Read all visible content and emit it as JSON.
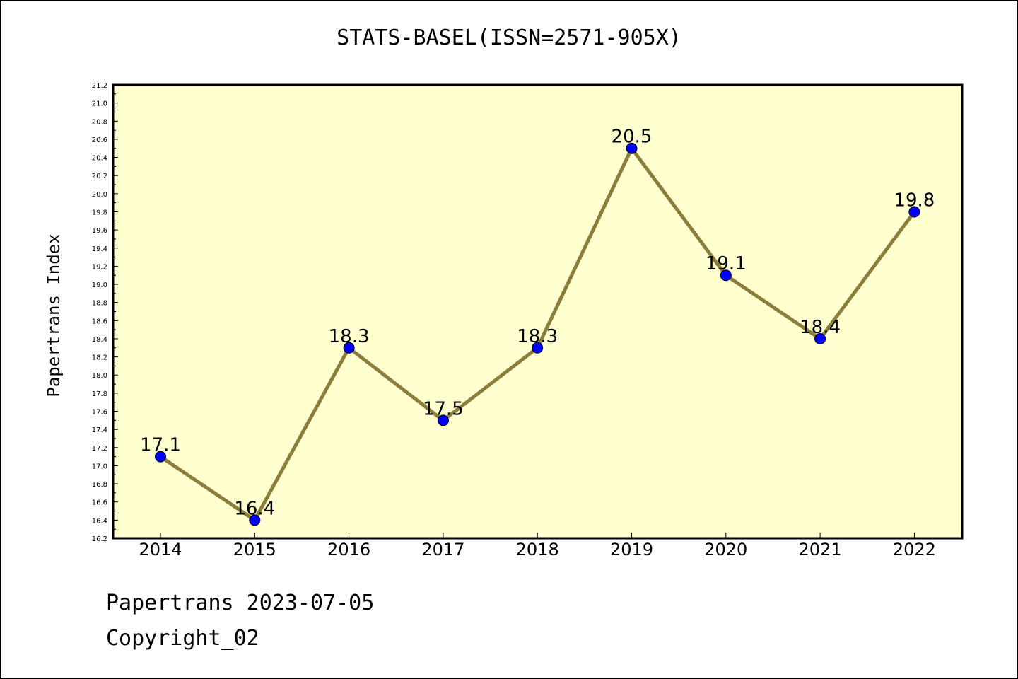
{
  "chart_data": {
    "type": "line",
    "title": "STATS-BASEL(ISSN=2571-905X)",
    "xlabel": "",
    "ylabel": "Papertrans Index",
    "categories": [
      "2014",
      "2015",
      "2016",
      "2017",
      "2018",
      "2019",
      "2020",
      "2021",
      "2022"
    ],
    "series": [
      {
        "values": [
          17.1,
          16.4,
          18.3,
          17.5,
          18.3,
          20.5,
          19.1,
          18.4,
          19.8
        ]
      }
    ],
    "data_labels": [
      "17.1",
      "16.4",
      "18.3",
      "17.5",
      "18.3",
      "20.5",
      "19.1",
      "18.4",
      "19.8"
    ],
    "ylim": [
      16.2,
      21.2
    ],
    "yticks": [
      "16.2",
      "16.4",
      "16.6",
      "16.8",
      "17.0",
      "17.2",
      "17.4",
      "17.6",
      "17.8",
      "18.0",
      "18.2",
      "18.4",
      "18.6",
      "18.8",
      "19.0",
      "19.2",
      "19.4",
      "19.6",
      "19.8",
      "20.0",
      "20.2",
      "20.4",
      "20.6",
      "20.8",
      "21.0",
      "21.2"
    ],
    "grid": false,
    "colors": {
      "plot_background": "#ffffd0",
      "line": "#8b7d3a",
      "marker": "#0000ff"
    }
  },
  "footer": {
    "line1": "Papertrans 2023-07-05",
    "line2": "Copyright_02"
  }
}
